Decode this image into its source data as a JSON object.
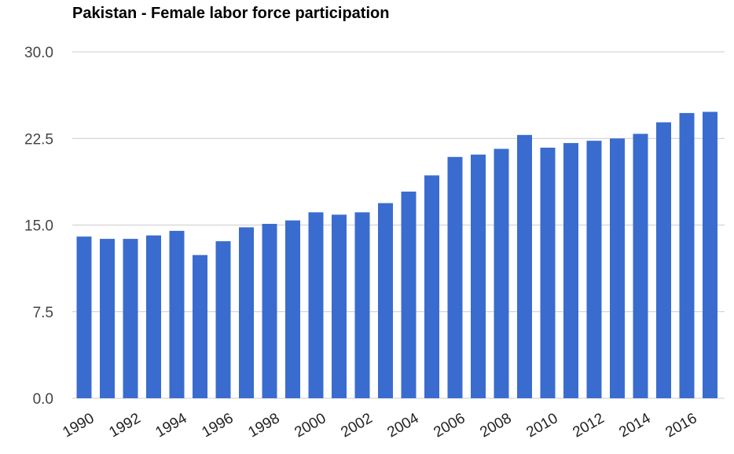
{
  "chart_data": {
    "type": "bar",
    "title": "Pakistan - Female labor force participation",
    "xlabel": "",
    "ylabel": "",
    "ylim": [
      0,
      30
    ],
    "yticks": [
      "0.0",
      "7.5",
      "15.0",
      "22.5",
      "30.0"
    ],
    "ytick_values": [
      0,
      7.5,
      15,
      22.5,
      30
    ],
    "xtick_labels": [
      "1990",
      "1992",
      "1994",
      "1996",
      "1998",
      "2000",
      "2002",
      "2004",
      "2006",
      "2008",
      "2010",
      "2012",
      "2014",
      "2016"
    ],
    "categories": [
      "1990",
      "1991",
      "1992",
      "1993",
      "1994",
      "1995",
      "1996",
      "1997",
      "1998",
      "1999",
      "2000",
      "2001",
      "2002",
      "2003",
      "2004",
      "2005",
      "2006",
      "2007",
      "2008",
      "2009",
      "2010",
      "2011",
      "2012",
      "2013",
      "2014",
      "2015",
      "2016",
      "2017"
    ],
    "values": [
      14.0,
      13.8,
      13.8,
      14.1,
      14.5,
      12.4,
      13.6,
      14.8,
      15.1,
      15.4,
      16.1,
      15.9,
      16.1,
      16.9,
      17.9,
      19.3,
      20.9,
      21.1,
      21.6,
      22.8,
      21.7,
      22.1,
      22.3,
      22.5,
      22.9,
      23.9,
      24.7,
      24.8
    ],
    "grid": true,
    "legend": "none",
    "bar_color": "#3a6ccf",
    "grid_color": "#cccccc"
  }
}
